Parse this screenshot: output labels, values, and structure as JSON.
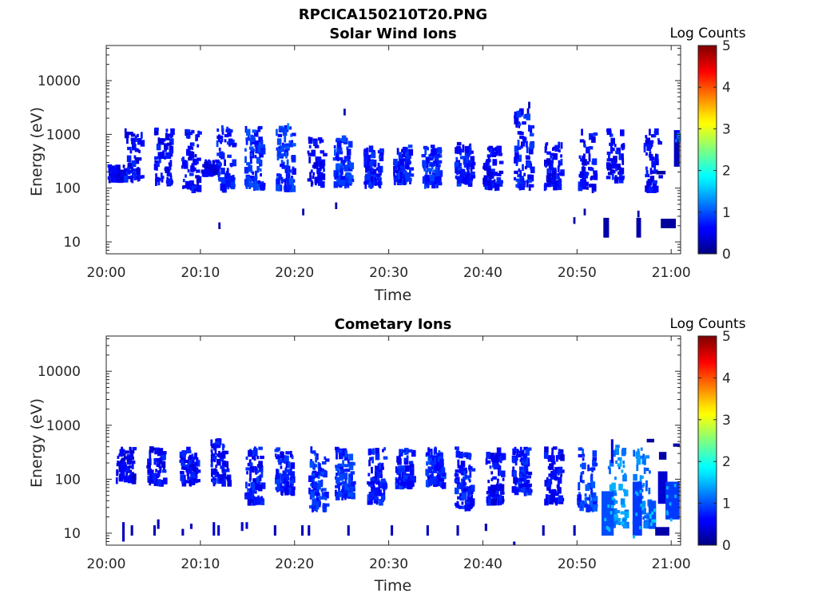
{
  "figure": {
    "filename_title": "RPCICA150210T20.PNG"
  },
  "chart_data": [
    {
      "type": "heatmap",
      "title": "Solar Wind Ions",
      "xlabel": "Time",
      "ylabel": "Energy (eV)",
      "x_ticks": [
        "20:00",
        "20:10",
        "20:20",
        "20:30",
        "20:40",
        "20:50",
        "21:00"
      ],
      "x_range_minutes": [
        0,
        61
      ],
      "y_scale": "log",
      "y_ticks": [
        10,
        100,
        1000,
        10000
      ],
      "y_tick_labels": [
        "10",
        "100",
        "1000",
        "10000"
      ],
      "ylim": [
        6,
        45000
      ],
      "colorbar": {
        "label": "Log Counts",
        "ticks": [
          "0",
          "1",
          "2",
          "3",
          "4",
          "5"
        ],
        "range": [
          0,
          5
        ],
        "colormap": "jet"
      },
      "bursts": [
        {
          "t": 0.6,
          "e": [
            150,
            260
          ],
          "v": 0.3,
          "d": 0.9
        },
        {
          "t": 2.4,
          "e": [
            150,
            1500
          ],
          "v": 0.4,
          "d": 0.8
        },
        {
          "t": 5.6,
          "e": [
            130,
            1400
          ],
          "v": 0.4,
          "d": 0.9
        },
        {
          "t": 8.5,
          "e": [
            100,
            1300
          ],
          "v": 0.4,
          "d": 0.9
        },
        {
          "t": 10.6,
          "e": [
            200,
            350
          ],
          "v": 0.3,
          "d": 0.8
        },
        {
          "t": 12.2,
          "e": [
            100,
            1500
          ],
          "v": 0.5,
          "d": 1.1
        },
        {
          "t": 15.2,
          "e": [
            110,
            1400
          ],
          "v": 0.6,
          "d": 1.3
        },
        {
          "t": 18.5,
          "e": [
            100,
            1400
          ],
          "v": 0.6,
          "d": 1.2
        },
        {
          "t": 21.8,
          "e": [
            120,
            900
          ],
          "v": 0.4,
          "d": 0.7
        },
        {
          "t": 24.6,
          "e": [
            120,
            900
          ],
          "v": 0.6,
          "d": 1.4
        },
        {
          "t": 27.8,
          "e": [
            120,
            600
          ],
          "v": 0.5,
          "d": 1.2
        },
        {
          "t": 31.0,
          "e": [
            140,
            600
          ],
          "v": 0.5,
          "d": 1.3
        },
        {
          "t": 34.0,
          "e": [
            120,
            600
          ],
          "v": 0.6,
          "d": 1.4
        },
        {
          "t": 37.5,
          "e": [
            130,
            700
          ],
          "v": 0.5,
          "d": 1.3
        },
        {
          "t": 40.5,
          "e": [
            110,
            600
          ],
          "v": 0.4,
          "d": 1.2
        },
        {
          "t": 43.8,
          "e": [
            110,
            3000
          ],
          "v": 0.5,
          "d": 1.3
        },
        {
          "t": 47.0,
          "e": [
            110,
            700
          ],
          "v": 0.4,
          "d": 1.1
        },
        {
          "t": 50.6,
          "e": [
            100,
            1200
          ],
          "v": 0.4,
          "d": 0.9
        },
        {
          "t": 53.6,
          "e": [
            150,
            1300
          ],
          "v": 0.4,
          "d": 0.8
        },
        {
          "t": 57.5,
          "e": [
            100,
            1500
          ],
          "v": 0.4,
          "d": 0.7
        }
      ],
      "blocks": [
        {
          "t0": 52.8,
          "t1": 53.4,
          "e0": 12,
          "e1": 28,
          "v": 0.2
        },
        {
          "t0": 56.3,
          "t1": 56.8,
          "e0": 12,
          "e1": 28,
          "v": 0.2
        },
        {
          "t0": 58.9,
          "t1": 60.5,
          "e0": 18,
          "e1": 27,
          "v": 0.15
        },
        {
          "t0": 58.4,
          "t1": 59.4,
          "e0": 180,
          "e1": 210,
          "v": 0.15
        },
        {
          "t0": 60.3,
          "t1": 60.9,
          "e0": 250,
          "e1": 1200,
          "v": 0.3
        },
        {
          "t0": 60.4,
          "t1": 60.9,
          "e0": 800,
          "e1": 1200,
          "v": 0.6
        }
      ],
      "scatter": [
        {
          "t": 11.9,
          "e": 20,
          "v": 0.2
        },
        {
          "t": 20.8,
          "e": 36,
          "v": 0.2
        },
        {
          "t": 24.3,
          "e": 47,
          "v": 0.2
        },
        {
          "t": 49.6,
          "e": 25,
          "v": 0.2
        },
        {
          "t": 50.7,
          "e": 36,
          "v": 0.2
        },
        {
          "t": 56.4,
          "e": 33,
          "v": 0.2
        },
        {
          "t": 25.2,
          "e": 2600,
          "v": 0.3
        },
        {
          "t": 44.8,
          "e": 3500,
          "v": 0.3
        },
        {
          "t": 19.2,
          "e": 1400,
          "v": 1.3
        }
      ]
    },
    {
      "type": "heatmap",
      "title": "Cometary Ions",
      "xlabel": "Time",
      "ylabel": "Energy (eV)",
      "x_ticks": [
        "20:00",
        "20:10",
        "20:20",
        "20:30",
        "20:40",
        "20:50",
        "21:00"
      ],
      "x_range_minutes": [
        0,
        61
      ],
      "y_scale": "log",
      "y_ticks": [
        10,
        100,
        1000,
        10000
      ],
      "y_tick_labels": [
        "10",
        "100",
        "1000",
        "10000"
      ],
      "ylim": [
        6,
        45000
      ],
      "colorbar": {
        "label": "Log Counts",
        "ticks": [
          "0",
          "1",
          "2",
          "3",
          "4",
          "5"
        ],
        "range": [
          0,
          5
        ],
        "colormap": "jet"
      },
      "bursts": [
        {
          "t": 1.5,
          "e": [
            100,
            380
          ],
          "v": 0.3,
          "d": 0.9
        },
        {
          "t": 4.8,
          "e": [
            90,
            380
          ],
          "v": 0.4,
          "d": 0.9
        },
        {
          "t": 8.3,
          "e": [
            90,
            380
          ],
          "v": 0.4,
          "d": 1.0
        },
        {
          "t": 11.6,
          "e": [
            90,
            550
          ],
          "v": 0.4,
          "d": 1.1
        },
        {
          "t": 15.2,
          "e": [
            40,
            380
          ],
          "v": 0.5,
          "d": 1.1
        },
        {
          "t": 18.4,
          "e": [
            60,
            380
          ],
          "v": 0.5,
          "d": 1.2
        },
        {
          "t": 22.0,
          "e": [
            30,
            380
          ],
          "v": 0.6,
          "d": 1.3
        },
        {
          "t": 24.8,
          "e": [
            50,
            380
          ],
          "v": 0.6,
          "d": 1.4
        },
        {
          "t": 28.2,
          "e": [
            40,
            380
          ],
          "v": 0.5,
          "d": 1.2
        },
        {
          "t": 31.2,
          "e": [
            80,
            380
          ],
          "v": 0.5,
          "d": 1.3
        },
        {
          "t": 34.4,
          "e": [
            80,
            380
          ],
          "v": 0.6,
          "d": 1.4
        },
        {
          "t": 37.5,
          "e": [
            30,
            380
          ],
          "v": 0.5,
          "d": 1.3
        },
        {
          "t": 40.8,
          "e": [
            40,
            380
          ],
          "v": 0.4,
          "d": 1.2
        },
        {
          "t": 43.6,
          "e": [
            60,
            380
          ],
          "v": 0.5,
          "d": 1.3
        },
        {
          "t": 47.0,
          "e": [
            40,
            380
          ],
          "v": 0.4,
          "d": 1.1
        },
        {
          "t": 50.5,
          "e": [
            30,
            380
          ],
          "v": 0.7,
          "d": 1.0
        },
        {
          "t": 53.8,
          "e": [
            15,
            500
          ],
          "v": 1.1,
          "d": 0.9
        },
        {
          "t": 56.4,
          "e": [
            15,
            380
          ],
          "v": 1.0,
          "d": 0.9
        }
      ],
      "blocks": [
        {
          "t0": 52.6,
          "t1": 53.9,
          "e0": 9,
          "e1": 60,
          "v": 1.0
        },
        {
          "t0": 55.9,
          "t1": 56.9,
          "e0": 9,
          "e1": 90,
          "v": 0.9
        },
        {
          "t0": 57.6,
          "t1": 58.4,
          "e0": 12,
          "e1": 40,
          "v": 1.0
        },
        {
          "t0": 58.3,
          "t1": 59.8,
          "e0": 9,
          "e1": 13,
          "v": 0.2
        },
        {
          "t0": 58.6,
          "t1": 59.6,
          "e0": 35,
          "e1": 140,
          "v": 0.4
        },
        {
          "t0": 59.4,
          "t1": 60.9,
          "e0": 18,
          "e1": 90,
          "v": 0.9
        },
        {
          "t0": 57.4,
          "t1": 58.2,
          "e0": 480,
          "e1": 560,
          "v": 0.15
        },
        {
          "t0": 58.7,
          "t1": 59.5,
          "e0": 230,
          "e1": 320,
          "v": 0.2
        },
        {
          "t0": 60.2,
          "t1": 60.9,
          "e0": 400,
          "e1": 460,
          "v": 0.2
        }
      ],
      "spikes": [
        {
          "t": 1.7,
          "e0": 7,
          "e1": 16,
          "v": 0.3
        },
        {
          "t": 2.6,
          "e0": 9,
          "e1": 14,
          "v": 0.3
        },
        {
          "t": 5.0,
          "e0": 9,
          "e1": 14,
          "v": 0.3
        },
        {
          "t": 5.4,
          "e0": 12,
          "e1": 18,
          "v": 0.3
        },
        {
          "t": 8.0,
          "e0": 9,
          "e1": 12,
          "v": 0.3
        },
        {
          "t": 8.9,
          "e0": 12,
          "e1": 15,
          "v": 0.3
        },
        {
          "t": 11.3,
          "e0": 9,
          "e1": 16,
          "v": 0.4
        },
        {
          "t": 11.8,
          "e0": 9,
          "e1": 14,
          "v": 0.4
        },
        {
          "t": 14.3,
          "e0": 11,
          "e1": 16,
          "v": 0.4
        },
        {
          "t": 14.8,
          "e0": 12,
          "e1": 16,
          "v": 0.4
        },
        {
          "t": 17.8,
          "e0": 9,
          "e1": 14,
          "v": 0.3
        },
        {
          "t": 20.7,
          "e0": 9,
          "e1": 14,
          "v": 0.3
        },
        {
          "t": 21.4,
          "e0": 9,
          "e1": 14,
          "v": 0.3
        },
        {
          "t": 25.6,
          "e0": 9,
          "e1": 14,
          "v": 0.3
        },
        {
          "t": 30.2,
          "e0": 9,
          "e1": 14,
          "v": 0.3
        },
        {
          "t": 34.0,
          "e0": 9,
          "e1": 14,
          "v": 0.3
        },
        {
          "t": 37.2,
          "e0": 9,
          "e1": 14,
          "v": 0.3
        },
        {
          "t": 40.2,
          "e0": 11,
          "e1": 15,
          "v": 0.3
        },
        {
          "t": 43.2,
          "e0": 6,
          "e1": 7,
          "v": 0.3
        },
        {
          "t": 46.3,
          "e0": 9,
          "e1": 14,
          "v": 0.3
        },
        {
          "t": 49.6,
          "e0": 9,
          "e1": 14,
          "v": 0.3
        },
        {
          "t": 53.6,
          "e0": 200,
          "e1": 550,
          "v": 0.5
        }
      ],
      "scatter": []
    }
  ]
}
